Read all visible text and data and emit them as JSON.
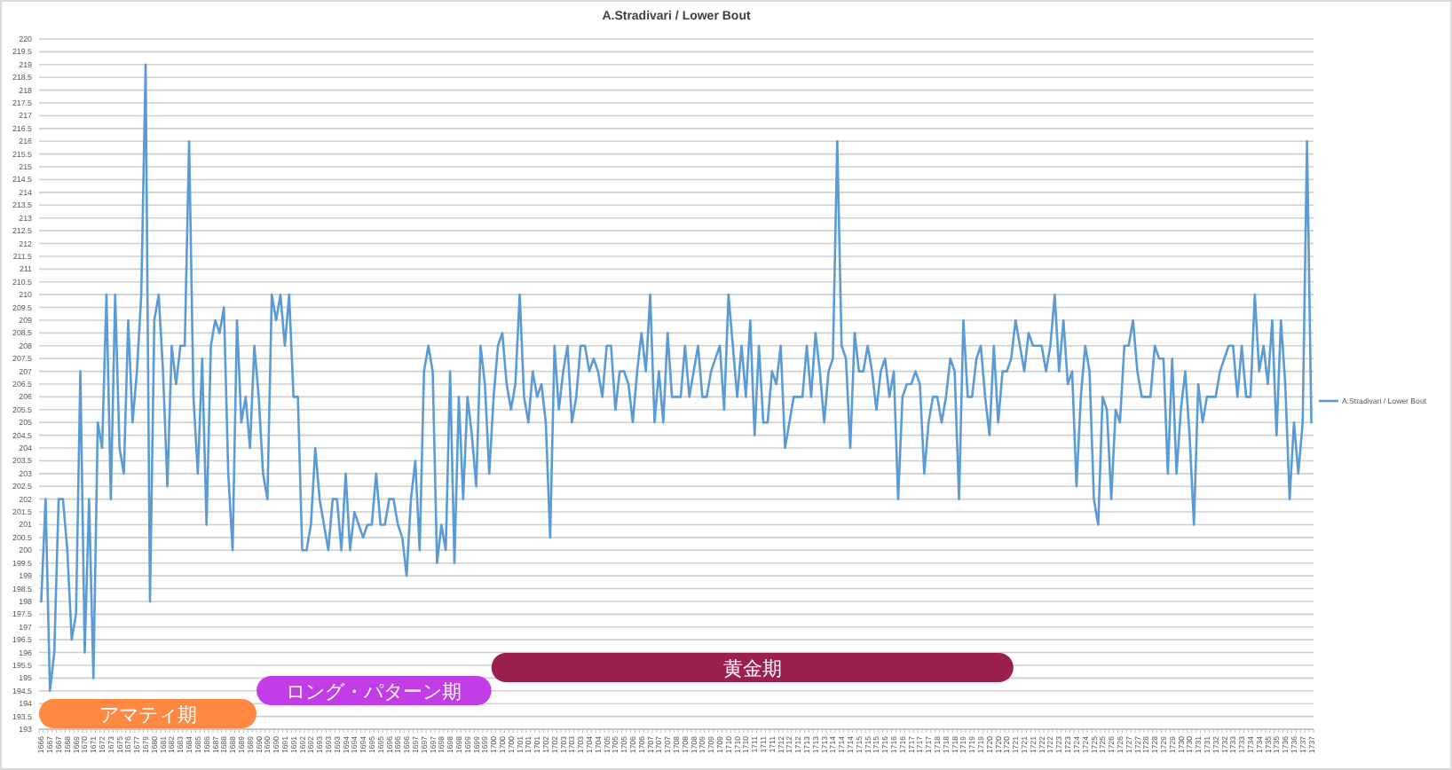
{
  "chart_data": {
    "type": "line",
    "title": "A.Stradivari / Lower Bout",
    "categories": [
      "1666",
      null,
      "1667",
      null,
      "1667",
      null,
      "1668",
      null,
      "1669",
      null,
      "1670",
      null,
      "1671",
      null,
      "1672",
      null,
      "1673",
      null,
      "1675",
      null,
      "1676",
      null,
      "1677",
      null,
      "1679",
      null,
      "1680",
      null,
      "1681",
      null,
      "1682",
      null,
      "1683",
      null,
      "1684",
      null,
      "1685",
      null,
      "1686",
      null,
      "1687",
      null,
      "1688",
      null,
      "1688",
      null,
      "1689",
      null,
      "1689",
      null,
      "1690",
      null,
      "1690",
      null,
      "1690",
      null,
      "1691",
      null,
      "1691",
      null,
      "1692",
      null,
      "1692",
      null,
      "1693",
      null,
      "1693",
      null,
      "1693",
      null,
      "1694",
      null,
      "1694",
      null,
      "1694",
      null,
      "1695",
      null,
      "1695",
      null,
      "1696",
      null,
      "1696",
      null,
      "1696",
      null,
      "1697",
      null,
      "1697",
      null,
      "1697",
      null,
      "1698",
      null,
      "1698",
      null,
      "1698",
      null,
      "1699",
      null,
      "1699",
      null,
      "1699",
      null,
      "1700",
      null,
      "1700",
      null,
      "1700",
      null,
      "1701",
      null,
      "1701",
      null,
      "1701",
      null,
      "1702",
      null,
      "1702",
      null,
      "1703",
      null,
      "1703",
      null,
      "1703",
      null,
      "1704",
      null,
      "1704",
      null,
      "1705",
      null,
      "1705",
      null,
      "1705",
      null,
      "1706",
      null,
      "1706",
      null,
      "1707",
      null,
      "1707",
      null,
      "1707",
      null,
      "1708",
      null,
      "1708",
      null,
      "1708",
      null,
      "1709",
      null,
      "1709",
      null,
      "1709",
      null,
      "1710",
      null,
      "1710",
      null,
      "1710",
      null,
      "1711",
      null,
      "1711",
      null,
      "1711",
      null,
      "1712",
      null,
      "1712",
      null,
      "1712",
      null,
      "1713",
      null,
      "1713",
      null,
      "1713",
      null,
      "1714",
      null,
      "1714",
      null,
      "1714",
      null,
      "1715",
      null,
      "1715",
      null,
      "1715",
      null,
      "1716",
      null,
      "1716",
      null,
      "1716",
      null,
      "1717",
      null,
      "1717",
      null,
      "1717",
      null,
      "1718",
      null,
      "1718",
      null,
      "1718",
      null,
      "1719",
      null,
      "1719",
      null,
      "1719",
      null,
      "1720",
      null,
      "1720",
      null,
      "1720",
      null,
      "1721",
      null,
      "1721",
      null,
      "1721",
      null,
      "1722",
      null,
      "1722",
      null,
      "1723",
      null,
      "1723",
      null,
      "1724",
      null,
      "1724",
      null,
      "1725",
      null,
      "1725",
      null,
      "1726",
      null,
      "1726",
      null,
      "1727",
      null,
      "1727",
      null,
      "1728",
      null,
      "1728",
      null,
      "1729",
      null,
      "1729",
      null,
      "1730",
      null,
      "1730",
      null,
      "1731",
      null,
      "1731",
      null,
      "1732",
      null,
      "1732",
      null,
      "1733",
      null,
      "1733",
      null,
      "1734",
      null,
      "1734",
      null,
      "1735",
      null,
      "1735",
      null,
      "1736",
      null,
      "1736",
      null,
      "1737",
      null,
      "1737"
    ],
    "series": [
      {
        "name": "A.Stradivari / Lower Bout",
        "color": "#5b9bd5",
        "values": [
          198,
          202,
          194.5,
          196,
          202,
          202,
          200,
          196.5,
          197.5,
          207,
          196,
          202,
          195,
          205,
          204,
          210,
          202,
          210,
          204,
          203,
          209,
          205,
          207,
          210,
          219,
          198,
          209,
          210,
          207,
          202.5,
          208,
          206.5,
          208,
          208,
          216,
          206,
          203,
          207.5,
          201,
          208,
          209,
          208.5,
          209.5,
          203,
          200,
          209,
          205,
          206,
          204,
          208,
          206,
          203,
          202,
          210,
          209,
          210,
          208,
          210,
          206,
          206,
          200,
          200,
          201,
          204,
          202,
          201,
          200,
          202,
          202,
          200,
          203,
          200,
          201.5,
          201,
          200.5,
          201,
          201,
          203,
          201,
          201,
          202,
          202,
          201,
          200.5,
          199,
          202,
          203.5,
          200,
          207,
          208,
          207,
          199.5,
          201,
          200,
          207,
          199.5,
          206,
          202,
          206,
          204.5,
          202.5,
          208,
          206.5,
          203,
          206,
          208,
          208.5,
          206.5,
          205.5,
          206.5,
          210,
          206,
          205,
          207,
          206,
          206.5,
          205,
          200.5,
          208,
          205.5,
          207,
          208,
          205,
          206,
          208,
          208,
          207,
          207.5,
          207,
          206,
          208,
          208,
          205.5,
          207,
          207,
          206.5,
          205,
          207,
          208.5,
          207,
          210,
          205,
          207,
          205,
          208.5,
          206,
          206,
          206,
          208,
          206,
          207,
          208,
          206,
          206,
          207,
          207.5,
          208,
          205.5,
          210,
          208,
          206,
          208,
          206,
          209,
          204.5,
          208,
          205,
          205,
          207,
          206.5,
          208,
          204,
          205,
          206,
          206,
          206,
          208,
          206,
          208.5,
          207,
          205,
          207,
          207.5,
          216,
          208,
          207.5,
          204,
          208.5,
          207,
          207,
          208,
          207,
          205.5,
          207,
          207.5,
          206,
          207,
          202,
          206,
          206.5,
          206.5,
          207,
          206.5,
          203,
          205,
          206,
          206,
          205,
          206,
          207.5,
          207,
          202,
          209,
          206,
          206,
          207.5,
          208,
          206,
          204.5,
          208,
          205,
          207,
          207,
          207.5,
          209,
          208,
          207,
          208.5,
          208,
          208,
          208,
          207,
          208,
          210,
          207,
          209,
          206.5,
          207,
          202.5,
          206,
          208,
          207,
          202,
          201,
          206,
          205.5,
          202,
          205.5,
          205,
          208,
          208,
          209,
          207,
          206,
          206,
          206,
          208,
          207.5,
          207.5,
          203,
          207.5,
          203,
          205.5,
          207,
          204.5,
          201,
          206.5,
          205,
          206,
          206,
          206,
          207,
          207.5,
          208,
          208,
          206,
          208,
          206,
          206,
          210,
          207,
          208,
          206.5,
          209,
          204.5,
          209,
          206.5,
          202,
          205,
          203,
          205,
          216,
          205
        ]
      }
    ],
    "ylim": [
      193,
      220
    ],
    "yticks": [
      193,
      193.5,
      194,
      194.5,
      195,
      195.5,
      196,
      196.5,
      197,
      197.5,
      198,
      198.5,
      199,
      199.5,
      200,
      200.5,
      201,
      201.5,
      202,
      202.5,
      203,
      203.5,
      204,
      204.5,
      205,
      205.5,
      206,
      206.5,
      207,
      207.5,
      208,
      208.5,
      209,
      209.5,
      210,
      210.5,
      211,
      211.5,
      212,
      212.5,
      213,
      213.5,
      214,
      214.5,
      215,
      215.5,
      216,
      216.5,
      217,
      217.5,
      218,
      218.5,
      219,
      219.5,
      220
    ],
    "grid": "y",
    "legend": "right",
    "bands": [
      {
        "axis": "x",
        "from": "1666",
        "to": "1690",
        "label": "アマティ期",
        "color": "#ff8843"
      },
      {
        "axis": "x",
        "from": "1690",
        "to": "1700",
        "label": "ロング・パターン期",
        "color": "#c33de6"
      },
      {
        "axis": "x",
        "from": "1700",
        "to": "1721",
        "label": "黄金期",
        "color": "#9b1f4f"
      }
    ]
  }
}
